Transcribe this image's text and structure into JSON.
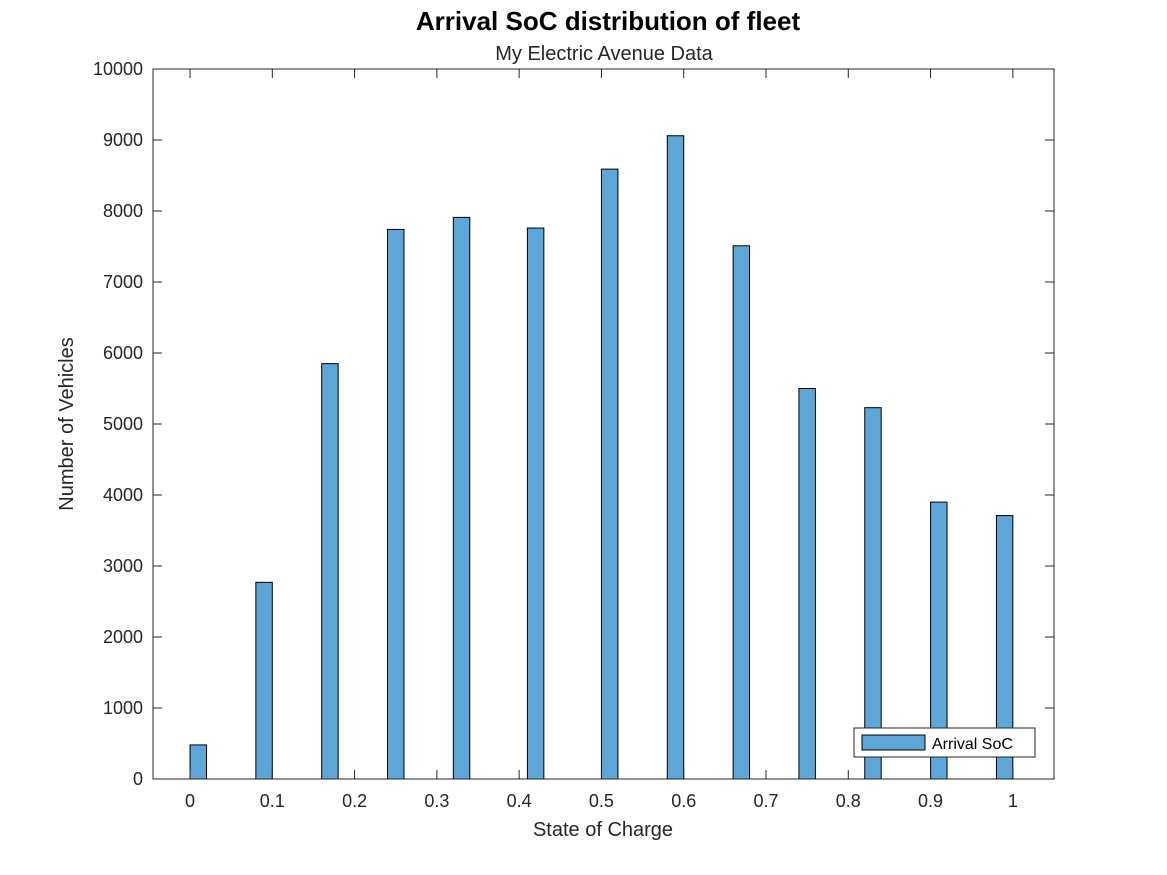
{
  "chart_data": {
    "type": "bar",
    "title": "Arrival SoC distribution of fleet",
    "subtitle": "My Electric Avenue Data",
    "xlabel": "State of Charge",
    "ylabel": "Number of Vehicles",
    "xlim": [
      -0.045,
      1.05
    ],
    "ylim": [
      0,
      10000
    ],
    "x_ticks": [
      0,
      0.1,
      0.2,
      0.3,
      0.4,
      0.5,
      0.6,
      0.7,
      0.8,
      0.9,
      1
    ],
    "x_tick_labels": [
      "0",
      "0.1",
      "0.2",
      "0.3",
      "0.4",
      "0.5",
      "0.6",
      "0.7",
      "0.8",
      "0.9",
      "1"
    ],
    "y_ticks": [
      0,
      1000,
      2000,
      3000,
      4000,
      5000,
      6000,
      7000,
      8000,
      9000,
      10000
    ],
    "y_tick_labels": [
      "0",
      "1000",
      "2000",
      "3000",
      "4000",
      "5000",
      "6000",
      "7000",
      "8000",
      "9000",
      "10000"
    ],
    "bar_width": 0.02,
    "x": [
      0.01,
      0.09,
      0.17,
      0.25,
      0.33,
      0.42,
      0.51,
      0.59,
      0.67,
      0.75,
      0.83,
      0.91,
      0.99
    ],
    "series": [
      {
        "name": "Arrival SoC",
        "color": "#5ea5d8",
        "values": [
          480,
          2770,
          5850,
          7740,
          7910,
          7760,
          8590,
          9060,
          7510,
          5500,
          5230,
          3900,
          3710
        ]
      }
    ],
    "legend": {
      "position": "bottom-right",
      "entries": [
        "Arrival SoC"
      ]
    },
    "grid": false
  }
}
